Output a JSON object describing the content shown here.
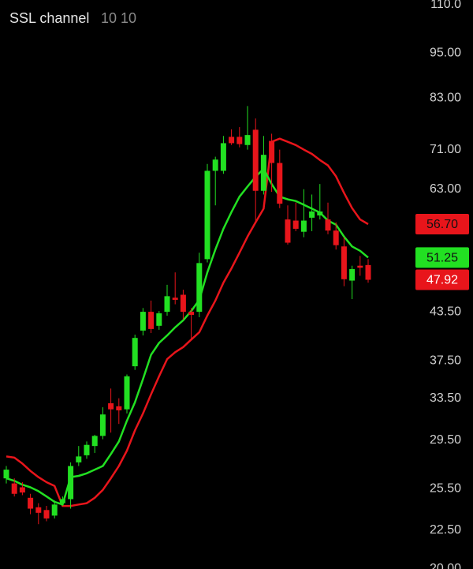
{
  "chart_data": {
    "type": "candlestick",
    "title": "SSL channel",
    "subtitle": "10 10",
    "open": [
      26.3,
      25.9,
      25.6,
      24.8,
      24.1,
      23.9,
      23.5,
      24.4,
      24.7,
      27.6,
      28.2,
      29.0,
      29.9,
      33.0,
      32.7,
      32.4,
      36.9,
      41.1,
      43.5,
      41.7,
      43.5,
      45.4,
      45.8,
      43.5,
      43.5,
      51.0,
      66.6,
      66.6,
      73.8,
      73.8,
      72.0,
      75.4,
      62.7,
      72.9,
      68.2,
      57.5,
      57.3,
      55.4,
      57.8,
      58.2,
      57.5,
      55.6,
      53.0,
      47.8,
      50.0,
      50.1
    ],
    "high": [
      27.3,
      26.3,
      26.0,
      25.1,
      24.4,
      24.2,
      24.6,
      24.9,
      27.6,
      29.0,
      29.4,
      30.0,
      32.6,
      34.5,
      33.5,
      36.0,
      40.6,
      44.0,
      45.0,
      43.6,
      47.2,
      49.0,
      46.5,
      44.0,
      52.0,
      68.0,
      69.5,
      74.0,
      75.5,
      76.0,
      81.0,
      78.0,
      74.0,
      74.5,
      71.0,
      60.0,
      60.5,
      63.0,
      62.0,
      64.0,
      60.5,
      57.0,
      54.5,
      50.0,
      51.5,
      51.0
    ],
    "low": [
      25.9,
      24.9,
      25.0,
      23.6,
      22.9,
      23.1,
      23.3,
      24.2,
      24.0,
      27.3,
      27.9,
      28.4,
      29.6,
      30.2,
      31.0,
      32.0,
      36.5,
      40.5,
      40.8,
      41.2,
      43.0,
      44.5,
      42.5,
      40.0,
      42.8,
      50.5,
      60.0,
      66.0,
      72.0,
      71.5,
      71.0,
      57.3,
      62.0,
      62.5,
      59.5,
      53.3,
      55.5,
      54.5,
      55.5,
      57.5,
      55.0,
      52.5,
      47.0,
      45.2,
      48.5,
      47.5
    ],
    "close": [
      27.0,
      25.1,
      25.2,
      24.0,
      23.7,
      23.3,
      24.3,
      24.7,
      27.3,
      28.1,
      29.1,
      29.9,
      31.9,
      32.4,
      32.3,
      35.8,
      40.2,
      43.5,
      41.3,
      43.3,
      45.6,
      45.1,
      43.5,
      43.1,
      50.4,
      66.6,
      68.9,
      72.4,
      72.4,
      72.2,
      74.2,
      62.7,
      69.9,
      68.2,
      60.3,
      53.6,
      55.9,
      57.3,
      58.9,
      58.9,
      55.6,
      53.2,
      48.0,
      49.5,
      49.7,
      47.92
    ],
    "close_labels": [
      null,
      null,
      null,
      null,
      null,
      null,
      null,
      null,
      null,
      null,
      null,
      null,
      null,
      null,
      null,
      null,
      null,
      null,
      null,
      null,
      null,
      null,
      null,
      null,
      null,
      null,
      null,
      null,
      null,
      null,
      null,
      null,
      null,
      null,
      null,
      null,
      null,
      null,
      null,
      null,
      null,
      null,
      null,
      null,
      null,
      "47.92"
    ],
    "up_color": "#22e022",
    "down_color": "#e8151b",
    "series": [
      {
        "color": "#e8151b",
        "values": [
          28.1,
          28.0,
          27.5,
          26.9,
          26.4,
          26.0,
          25.7,
          24.2,
          24.2,
          24.3,
          24.4,
          24.8,
          25.4,
          26.3,
          27.3,
          28.6,
          30.4,
          32.0,
          33.9,
          35.8,
          37.7,
          38.5,
          39.1,
          40.0,
          40.9,
          43.0,
          45.0,
          47.5,
          49.6,
          52.0,
          54.6,
          57.0,
          59.4,
          72.7,
          73.4,
          72.7,
          72.0,
          71.0,
          70.1,
          68.8,
          67.7,
          65.5,
          62.3,
          59.5,
          57.5,
          56.7
        ],
        "value_labels": [
          null,
          null,
          null,
          null,
          null,
          null,
          null,
          null,
          null,
          null,
          null,
          null,
          null,
          null,
          null,
          null,
          null,
          null,
          null,
          null,
          null,
          null,
          null,
          null,
          null,
          null,
          null,
          null,
          null,
          null,
          null,
          null,
          null,
          null,
          null,
          null,
          null,
          null,
          null,
          null,
          null,
          null,
          null,
          null,
          null,
          "56.70"
        ]
      },
      {
        "color": "#22e022",
        "values": [
          26.3,
          26.1,
          25.8,
          25.6,
          25.3,
          24.9,
          24.5,
          24.3,
          26.4,
          26.5,
          26.7,
          27.0,
          27.3,
          28.3,
          29.4,
          31.3,
          33.1,
          35.5,
          38.2,
          39.6,
          40.5,
          41.5,
          42.4,
          43.6,
          45.1,
          49.0,
          52.5,
          55.9,
          58.8,
          61.6,
          63.5,
          65.4,
          67.0,
          64.0,
          61.6,
          61.1,
          60.8,
          60.1,
          59.4,
          58.7,
          57.3,
          56.6,
          54.6,
          53.0,
          52.3,
          51.25
        ],
        "value_labels": [
          null,
          null,
          null,
          null,
          null,
          null,
          null,
          null,
          null,
          null,
          null,
          null,
          null,
          null,
          null,
          null,
          null,
          null,
          null,
          null,
          null,
          null,
          null,
          null,
          null,
          null,
          null,
          null,
          null,
          null,
          null,
          null,
          null,
          null,
          null,
          null,
          null,
          null,
          null,
          null,
          null,
          null,
          null,
          null,
          null,
          "51.25"
        ]
      }
    ],
    "log_y": true,
    "ylim": [
      20,
      110
    ],
    "yticks": [
      {
        "value": 110,
        "label": "110.0"
      },
      {
        "value": 95,
        "label": "95.00"
      },
      {
        "value": 83,
        "label": "83.00"
      },
      {
        "value": 71,
        "label": "71.00"
      },
      {
        "value": 63,
        "label": "63.00"
      },
      {
        "value": 43.5,
        "label": "43.50"
      },
      {
        "value": 37.5,
        "label": "37.50"
      },
      {
        "value": 33.5,
        "label": "33.50"
      },
      {
        "value": 29.5,
        "label": "29.50"
      },
      {
        "value": 25.5,
        "label": "25.50"
      },
      {
        "value": 22.5,
        "label": "22.50"
      },
      {
        "value": 20,
        "label": "20.00"
      }
    ]
  }
}
